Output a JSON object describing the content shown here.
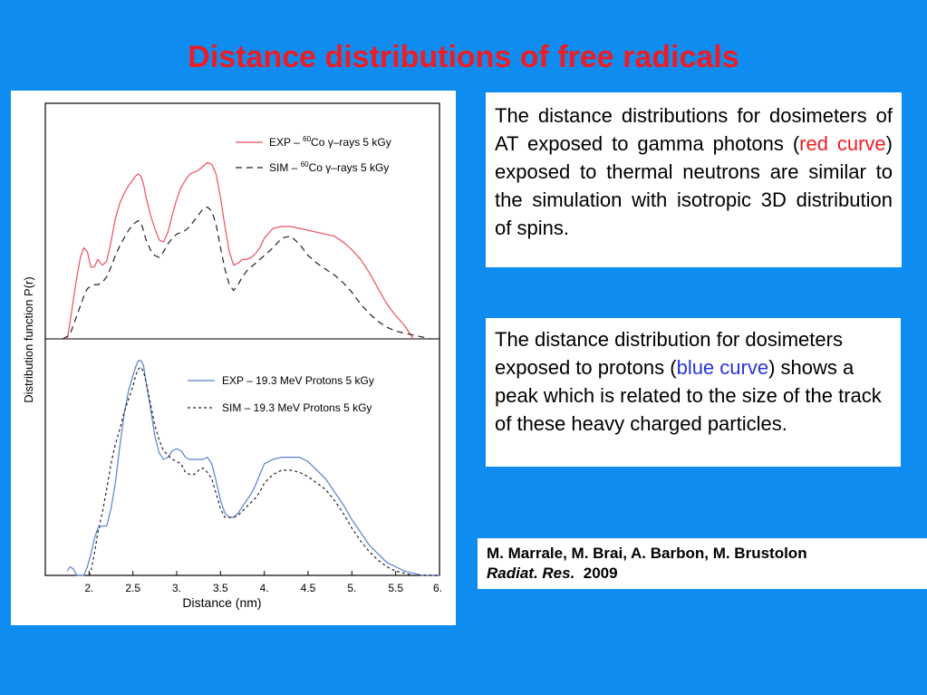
{
  "title": "Distance distributions of free radicals",
  "text_box_1": {
    "before": "The distance distributions for dosimeters of AT exposed to gamma photons (",
    "highlight": "red curve",
    "after": ") exposed to thermal neutrons are similar to the simulation with isotropic 3D distribution of spins."
  },
  "text_box_2": {
    "before": "The distance distribution for dosimeters exposed to protons (",
    "highlight": "blue curve",
    "after": ") shows a peak which is related to the size of the track of these heavy charged particles."
  },
  "citation": {
    "authors": "M. Marrale, M. Brai, A. Barbon, M. Brustolon",
    "journal": "Radiat. Res.",
    "year": "2009"
  },
  "colors": {
    "background": "#0f8cf0",
    "title": "#ee1c24",
    "exp_gamma": "#ee4d5e",
    "exp_protons": "#5b7fcf",
    "sim": "#222222"
  },
  "chart_data": {
    "type": "line",
    "xlabel": "Distance (nm)",
    "ylabel": "Distribution function P(r)",
    "xlim": [
      1.5,
      6.0
    ],
    "xticks": [
      2.0,
      2.5,
      3.0,
      3.5,
      4.0,
      4.5,
      5.0,
      5.5,
      6.0
    ],
    "xtick_labels": [
      "2.",
      "2.5",
      "3.",
      "3.5",
      "4.",
      "4.5",
      "5.",
      "5.5",
      "6."
    ],
    "panels": [
      {
        "name": "top",
        "ylim": [
          0,
          1
        ],
        "legend": {
          "exp_prefix": "EXP – ",
          "sim_prefix": "SIM – ",
          "sup": "60",
          "suffix": "Co γ–rays 5 kGy"
        },
        "series": [
          {
            "name": "EXP – 60Co γ–rays 5 kGy",
            "style": "solid",
            "x": [
              1.75,
              1.78,
              1.82,
              1.86,
              1.9,
              1.94,
              1.98,
              2.02,
              2.06,
              2.1,
              2.15,
              2.2,
              2.25,
              2.3,
              2.35,
              2.4,
              2.45,
              2.5,
              2.53,
              2.56,
              2.59,
              2.62,
              2.65,
              2.7,
              2.75,
              2.8,
              2.85,
              2.9,
              2.95,
              3.0,
              3.05,
              3.1,
              3.15,
              3.2,
              3.25,
              3.3,
              3.35,
              3.4,
              3.45,
              3.5,
              3.55,
              3.6,
              3.65,
              3.7,
              3.75,
              3.8,
              3.85,
              3.9,
              3.95,
              4.0,
              4.1,
              4.2,
              4.3,
              4.4,
              4.5,
              4.6,
              4.7,
              4.8,
              4.9,
              5.0,
              5.1,
              5.2,
              5.3,
              5.4,
              5.5,
              5.6,
              5.7
            ],
            "y": [
              0.0,
              0.08,
              0.2,
              0.32,
              0.42,
              0.47,
              0.45,
              0.37,
              0.37,
              0.41,
              0.38,
              0.4,
              0.5,
              0.62,
              0.7,
              0.75,
              0.79,
              0.82,
              0.84,
              0.85,
              0.84,
              0.8,
              0.73,
              0.64,
              0.57,
              0.51,
              0.5,
              0.55,
              0.64,
              0.72,
              0.78,
              0.82,
              0.85,
              0.86,
              0.87,
              0.89,
              0.91,
              0.9,
              0.85,
              0.73,
              0.58,
              0.45,
              0.38,
              0.39,
              0.41,
              0.41,
              0.42,
              0.44,
              0.47,
              0.52,
              0.57,
              0.58,
              0.58,
              0.57,
              0.56,
              0.55,
              0.54,
              0.53,
              0.5,
              0.46,
              0.41,
              0.34,
              0.26,
              0.18,
              0.12,
              0.07,
              0.0
            ]
          },
          {
            "name": "SIM – 60Co γ–rays 5 kGy",
            "style": "dashed",
            "x": [
              1.7,
              1.78,
              1.82,
              1.86,
              1.9,
              1.94,
              1.98,
              2.02,
              2.06,
              2.1,
              2.15,
              2.2,
              2.25,
              2.3,
              2.35,
              2.4,
              2.45,
              2.5,
              2.53,
              2.56,
              2.59,
              2.62,
              2.65,
              2.7,
              2.75,
              2.8,
              2.85,
              2.9,
              2.95,
              3.0,
              3.05,
              3.1,
              3.15,
              3.2,
              3.25,
              3.3,
              3.35,
              3.4,
              3.45,
              3.5,
              3.55,
              3.6,
              3.65,
              3.7,
              3.75,
              3.8,
              3.85,
              3.9,
              3.95,
              4.0,
              4.1,
              4.2,
              4.3,
              4.4,
              4.5,
              4.6,
              4.7,
              4.8,
              4.9,
              5.0,
              5.1,
              5.2,
              5.3,
              5.4,
              5.5,
              5.6,
              5.7,
              5.8,
              5.9,
              6.0
            ],
            "y": [
              0.0,
              0.02,
              0.07,
              0.12,
              0.17,
              0.22,
              0.26,
              0.27,
              0.28,
              0.28,
              0.29,
              0.32,
              0.37,
              0.43,
              0.48,
              0.52,
              0.56,
              0.59,
              0.6,
              0.61,
              0.6,
              0.56,
              0.51,
              0.46,
              0.43,
              0.42,
              0.45,
              0.49,
              0.52,
              0.54,
              0.55,
              0.56,
              0.58,
              0.61,
              0.64,
              0.67,
              0.68,
              0.66,
              0.59,
              0.47,
              0.36,
              0.28,
              0.25,
              0.28,
              0.32,
              0.35,
              0.37,
              0.39,
              0.41,
              0.43,
              0.47,
              0.52,
              0.53,
              0.49,
              0.43,
              0.39,
              0.36,
              0.33,
              0.29,
              0.24,
              0.18,
              0.13,
              0.09,
              0.06,
              0.04,
              0.03,
              0.02,
              0.01,
              0.0,
              0.0
            ]
          }
        ]
      },
      {
        "name": "bottom",
        "ylim": [
          0,
          1
        ],
        "legend": {
          "exp": "EXP – 19.3 MeV Protons 5 kGy",
          "sim": "SIM – 19.3 MeV Protons 5 kGy"
        },
        "series": [
          {
            "name": "EXP – 19.3 MeV Protons 5 kGy",
            "style": "solid",
            "x": [
              1.75,
              1.78,
              1.82,
              1.86,
              1.9,
              1.94,
              1.98,
              2.02,
              2.06,
              2.1,
              2.15,
              2.2,
              2.25,
              2.3,
              2.35,
              2.4,
              2.45,
              2.5,
              2.53,
              2.56,
              2.59,
              2.62,
              2.65,
              2.7,
              2.75,
              2.8,
              2.85,
              2.9,
              2.95,
              3.0,
              3.05,
              3.1,
              3.15,
              3.2,
              3.25,
              3.3,
              3.35,
              3.4,
              3.45,
              3.5,
              3.55,
              3.6,
              3.65,
              3.7,
              3.75,
              3.8,
              3.85,
              3.9,
              3.95,
              4.0,
              4.1,
              4.2,
              4.3,
              4.4,
              4.5,
              4.6,
              4.7,
              4.8,
              4.9,
              5.0,
              5.1,
              5.2,
              5.3,
              5.4,
              5.5,
              5.6,
              5.7,
              5.8,
              5.9,
              6.0
            ],
            "y": [
              0.02,
              0.04,
              0.03,
              0.0,
              0.0,
              0.0,
              0.04,
              0.1,
              0.17,
              0.22,
              0.23,
              0.23,
              0.31,
              0.43,
              0.6,
              0.75,
              0.86,
              0.93,
              0.97,
              1.0,
              1.0,
              0.98,
              0.9,
              0.78,
              0.65,
              0.57,
              0.54,
              0.55,
              0.58,
              0.59,
              0.58,
              0.55,
              0.54,
              0.54,
              0.54,
              0.54,
              0.55,
              0.52,
              0.44,
              0.35,
              0.29,
              0.27,
              0.27,
              0.29,
              0.32,
              0.35,
              0.38,
              0.42,
              0.47,
              0.52,
              0.54,
              0.55,
              0.55,
              0.55,
              0.53,
              0.49,
              0.45,
              0.39,
              0.33,
              0.26,
              0.2,
              0.14,
              0.1,
              0.06,
              0.04,
              0.02,
              0.01,
              0.0,
              0.0,
              0.0
            ]
          },
          {
            "name": "SIM – 19.3 MeV Protons 5 kGy",
            "style": "dashed",
            "x": [
              2.0,
              2.02,
              2.06,
              2.1,
              2.15,
              2.2,
              2.25,
              2.3,
              2.35,
              2.4,
              2.45,
              2.5,
              2.53,
              2.56,
              2.59,
              2.62,
              2.65,
              2.7,
              2.75,
              2.8,
              2.85,
              2.9,
              2.95,
              3.0,
              3.05,
              3.1,
              3.15,
              3.2,
              3.25,
              3.3,
              3.35,
              3.4,
              3.45,
              3.5,
              3.55,
              3.6,
              3.65,
              3.7,
              3.75,
              3.8,
              3.85,
              3.9,
              3.95,
              4.0,
              4.1,
              4.2,
              4.3,
              4.4,
              4.5,
              4.6,
              4.7,
              4.8,
              4.9,
              5.0,
              5.1,
              5.2,
              5.3,
              5.4,
              5.5,
              5.6,
              5.7,
              5.8,
              5.9,
              6.0
            ],
            "y": [
              0.0,
              0.02,
              0.1,
              0.2,
              0.29,
              0.4,
              0.52,
              0.61,
              0.68,
              0.76,
              0.82,
              0.88,
              0.93,
              0.96,
              0.97,
              0.95,
              0.9,
              0.8,
              0.7,
              0.63,
              0.58,
              0.56,
              0.54,
              0.53,
              0.52,
              0.48,
              0.47,
              0.47,
              0.49,
              0.5,
              0.48,
              0.45,
              0.38,
              0.31,
              0.27,
              0.27,
              0.27,
              0.28,
              0.3,
              0.32,
              0.34,
              0.36,
              0.39,
              0.43,
              0.47,
              0.49,
              0.49,
              0.48,
              0.46,
              0.43,
              0.4,
              0.35,
              0.29,
              0.22,
              0.16,
              0.11,
              0.07,
              0.04,
              0.02,
              0.01,
              0.0,
              0.0,
              0.0,
              0.0
            ]
          }
        ]
      }
    ]
  }
}
